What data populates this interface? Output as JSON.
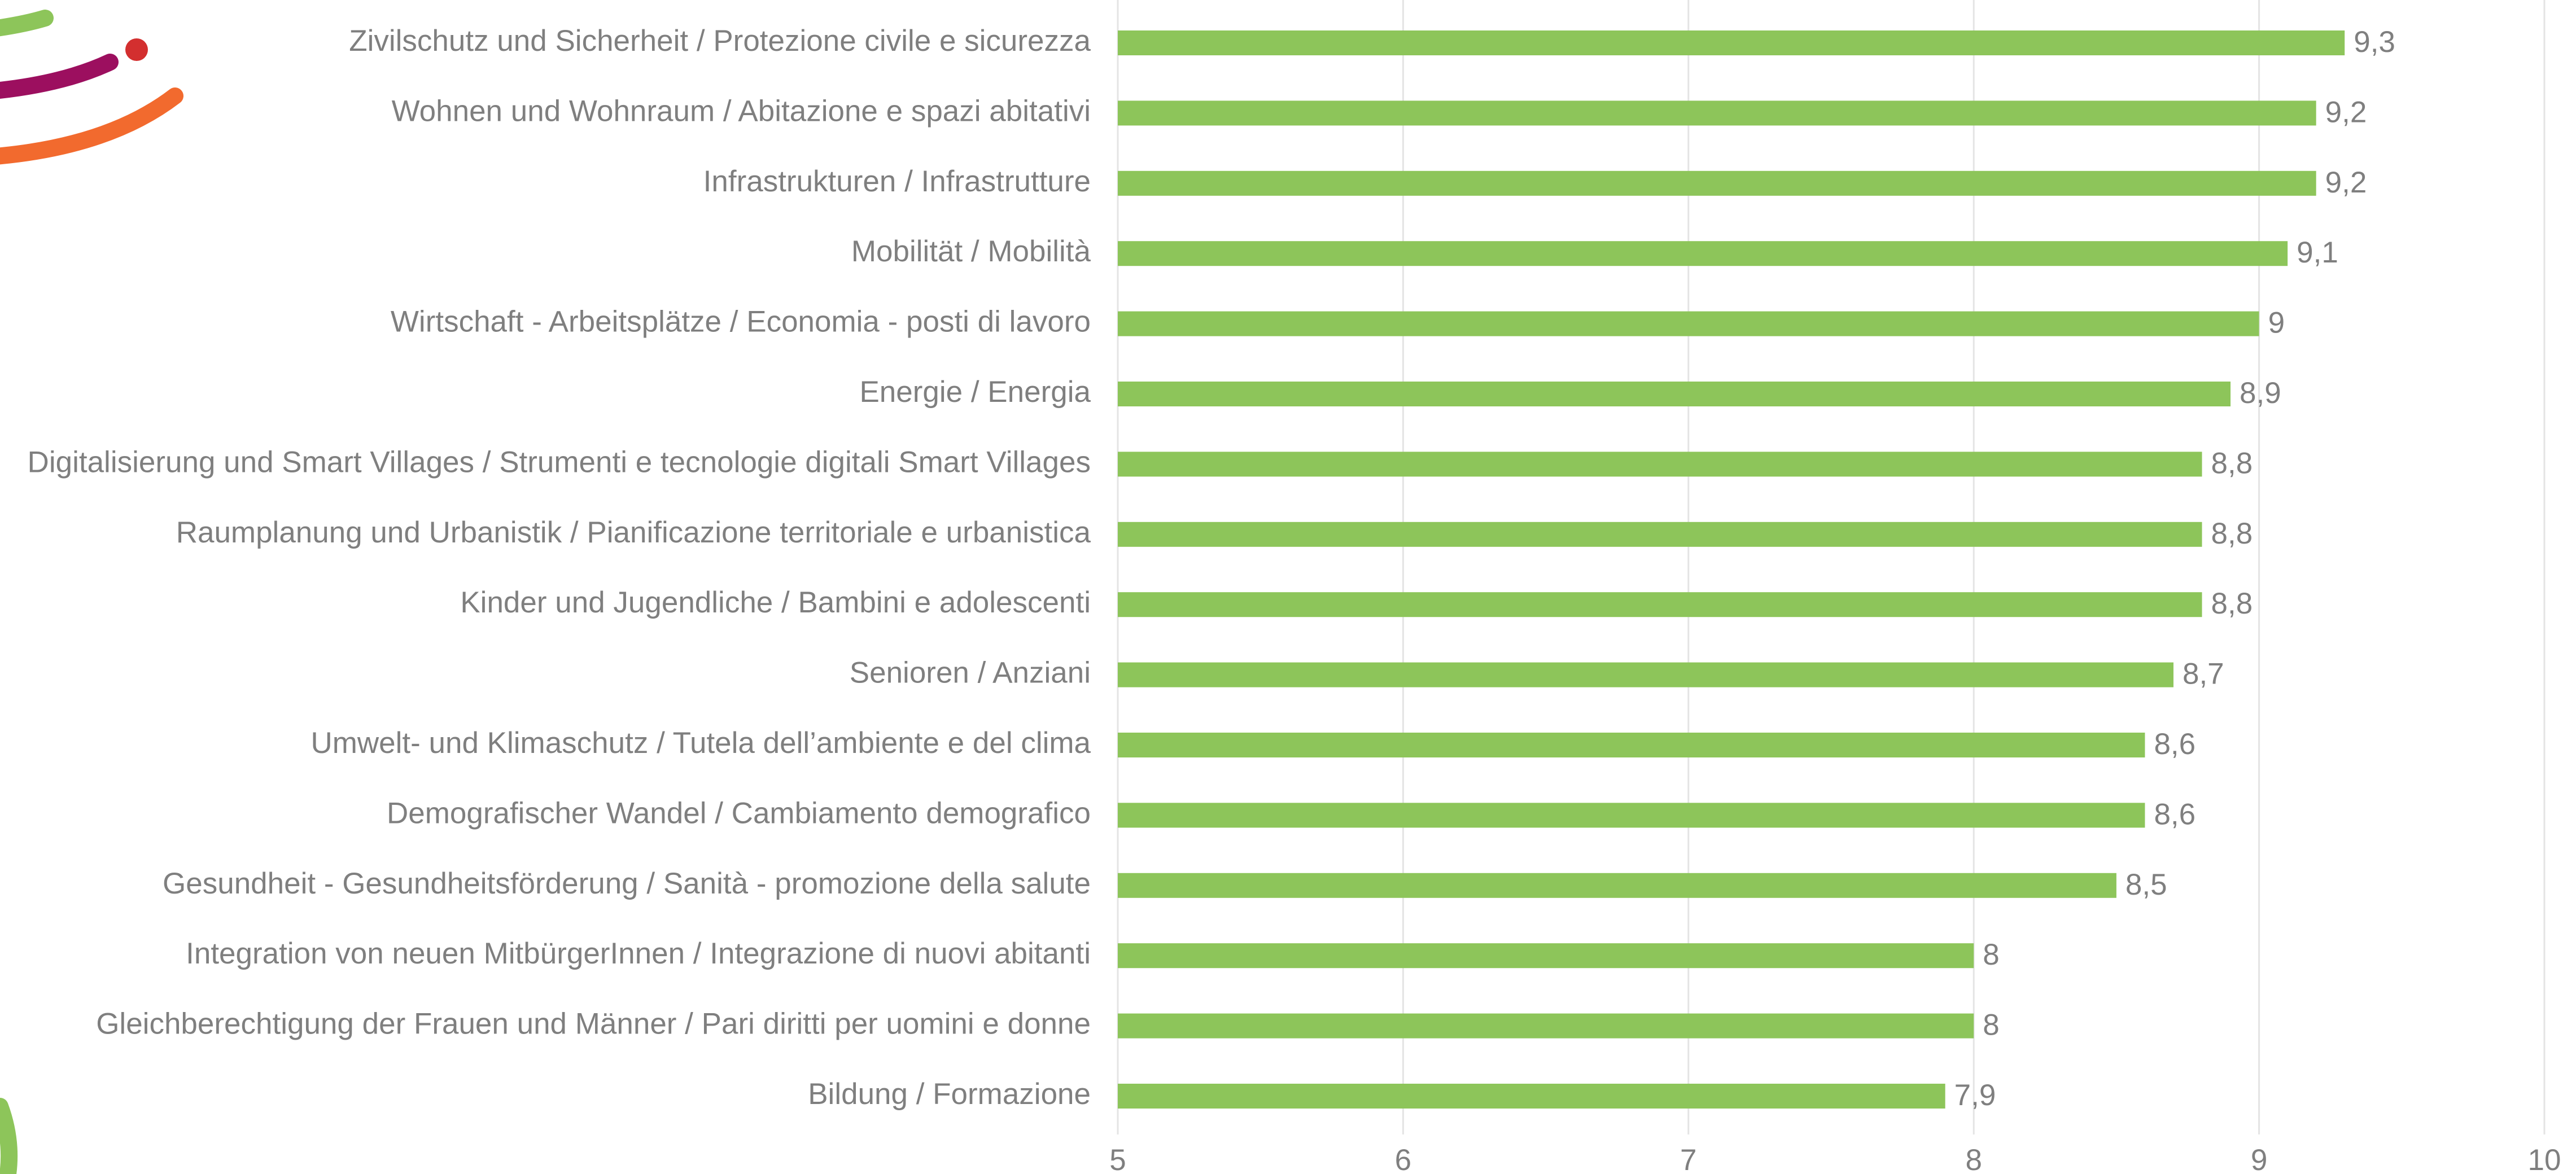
{
  "chart_data": {
    "type": "barh",
    "categories": [
      "Zivilschutz und Sicherheit / Protezione civile e sicurezza",
      "Wohnen und Wohnraum / Abitazione e spazi abitativi",
      "Infrastrukturen / Infrastrutture",
      "Mobilität / Mobilità",
      "Wirtschaft - Arbeitsplätze / Economia - posti di lavoro",
      "Energie / Energia",
      "Digitalisierung und Smart Villages / Strumenti e tecnologie digitali Smart Villages",
      "Raumplanung und Urbanistik / Pianificazione territoriale e urbanistica",
      "Kinder und Jugendliche / Bambini e adolescenti",
      "Senioren / Anziani",
      "Umwelt- und Klimaschutz / Tutela dell’ambiente e del clima",
      "Demografischer Wandel / Cambiamento demografico",
      "Gesundheit - Gesundheitsförderung / Sanità - promozione della salute",
      "Integration von neuen MitbürgerInnen / Integrazione di nuovi abitanti",
      "Gleichberechtigung der Frauen und Männer / Pari diritti per uomini e donne",
      "Bildung / Formazione"
    ],
    "values": [
      9.3,
      9.2,
      9.2,
      9.1,
      9,
      8.9,
      8.8,
      8.8,
      8.8,
      8.7,
      8.6,
      8.6,
      8.5,
      8,
      8,
      7.9
    ],
    "value_labels": [
      "9,3",
      "9,2",
      "9,2",
      "9,1",
      "9",
      "8,9",
      "8,8",
      "8,8",
      "8,8",
      "8,7",
      "8,6",
      "8,6",
      "8,5",
      "8",
      "8",
      "7,9"
    ],
    "color": "#8dc55a",
    "xlim": [
      5,
      10
    ],
    "xticks": [
      5,
      6,
      7,
      8,
      9,
      10
    ],
    "grid": true
  }
}
